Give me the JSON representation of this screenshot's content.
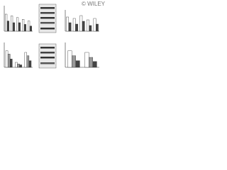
{
  "watermark": "© WILEY",
  "chart_data": [
    {
      "type": "bar",
      "categories": [
        null,
        null,
        null,
        null,
        null
      ],
      "ylim": [
        0,
        1.5
      ],
      "series": [
        {
          "color": "#ffffff",
          "values": [
            1.0,
            0.9,
            0.8,
            0.7,
            0.6
          ]
        },
        {
          "color": "#444444",
          "values": [
            0.6,
            0.5,
            0.5,
            0.4,
            0.3
          ]
        }
      ]
    },
    {
      "type": "bar",
      "categories": [
        null,
        null,
        null,
        null,
        null
      ],
      "ylim": [
        0,
        1.5
      ],
      "series": [
        {
          "color": "#ffffff",
          "values": [
            1.0,
            0.9,
            1.1,
            0.8,
            0.9
          ]
        },
        {
          "color": "#444444",
          "values": [
            0.6,
            0.5,
            0.7,
            0.4,
            0.5
          ]
        }
      ]
    },
    {
      "type": "bar",
      "categories": [
        null,
        null,
        null
      ],
      "ylim": [
        0,
        1.5
      ],
      "series": [
        {
          "color": "#ffffff",
          "values": [
            1.0,
            0.3,
            0.9
          ]
        },
        {
          "color": "#999999",
          "values": [
            0.8,
            0.2,
            0.7
          ]
        },
        {
          "color": "#444444",
          "values": [
            0.5,
            0.15,
            0.4
          ]
        }
      ]
    },
    {
      "type": "bar",
      "categories": [
        null,
        null
      ],
      "ylim": [
        0,
        1.5
      ],
      "series": [
        {
          "color": "#ffffff",
          "values": [
            1.0,
            0.9
          ]
        },
        {
          "color": "#999999",
          "values": [
            0.7,
            0.6
          ]
        },
        {
          "color": "#444444",
          "values": [
            0.4,
            0.35
          ]
        }
      ]
    }
  ]
}
